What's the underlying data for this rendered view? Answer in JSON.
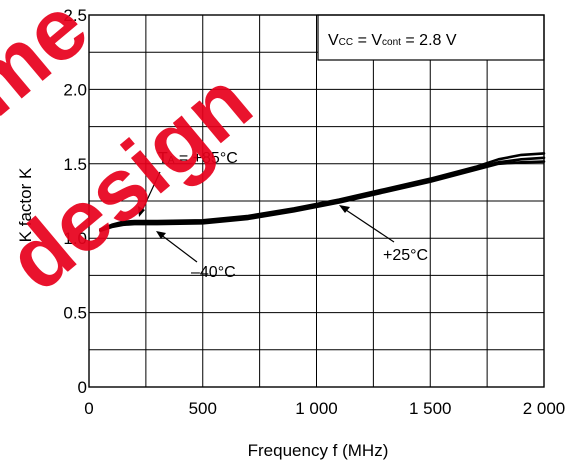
{
  "chart_data": {
    "type": "line",
    "xlabel": "Frequency  f (MHz)",
    "ylabel": "K factor  K",
    "xlim": [
      0,
      2000
    ],
    "ylim": [
      0,
      2.5
    ],
    "x_ticks": [
      0,
      500,
      1000,
      1500,
      2000
    ],
    "x_tick_labels": [
      "0",
      "500",
      "1 000",
      "1 500",
      "2 000"
    ],
    "y_ticks": [
      0,
      0.5,
      1.0,
      1.5,
      2.0,
      2.5
    ],
    "y_tick_labels": [
      "0",
      "0.5",
      "1.0",
      "1.5",
      "2.0",
      "2.5"
    ],
    "grid": true,
    "conditions": {
      "vcc_prefix": "V",
      "vcc_sub": "CC",
      "vcont_mid": " = V",
      "vcont_sub": "cont",
      "suffix": " = 2.8 V"
    },
    "series": [
      {
        "name": "TA = +85°C",
        "label_main": "T",
        "label_sub": "A",
        "label_rest": " = +85°C",
        "x": [
          50,
          100,
          150,
          200,
          300,
          500,
          700,
          900,
          1100,
          1300,
          1500,
          1700,
          1800,
          1900,
          2000
        ],
        "y": [
          1.06,
          1.09,
          1.11,
          1.115,
          1.115,
          1.12,
          1.15,
          1.2,
          1.26,
          1.33,
          1.4,
          1.48,
          1.53,
          1.56,
          1.57
        ]
      },
      {
        "name": "+25°C",
        "label": "+25°C",
        "x": [
          50,
          100,
          150,
          200,
          300,
          500,
          700,
          900,
          1100,
          1300,
          1500,
          1700,
          1800,
          1900,
          2000
        ],
        "y": [
          1.055,
          1.08,
          1.1,
          1.105,
          1.105,
          1.11,
          1.14,
          1.19,
          1.25,
          1.32,
          1.39,
          1.47,
          1.51,
          1.53,
          1.54
        ]
      },
      {
        "name": "-40°C",
        "label": "–40°C",
        "x": [
          50,
          100,
          150,
          200,
          300,
          500,
          700,
          900,
          1100,
          1300,
          1500,
          1700,
          1800,
          1900,
          2000
        ],
        "y": [
          1.05,
          1.075,
          1.09,
          1.095,
          1.095,
          1.1,
          1.13,
          1.18,
          1.24,
          1.31,
          1.38,
          1.46,
          1.5,
          1.51,
          1.515
        ]
      }
    ]
  },
  "watermark": {
    "line1": "me",
    "line2": "design",
    "color": "#e8001c"
  }
}
